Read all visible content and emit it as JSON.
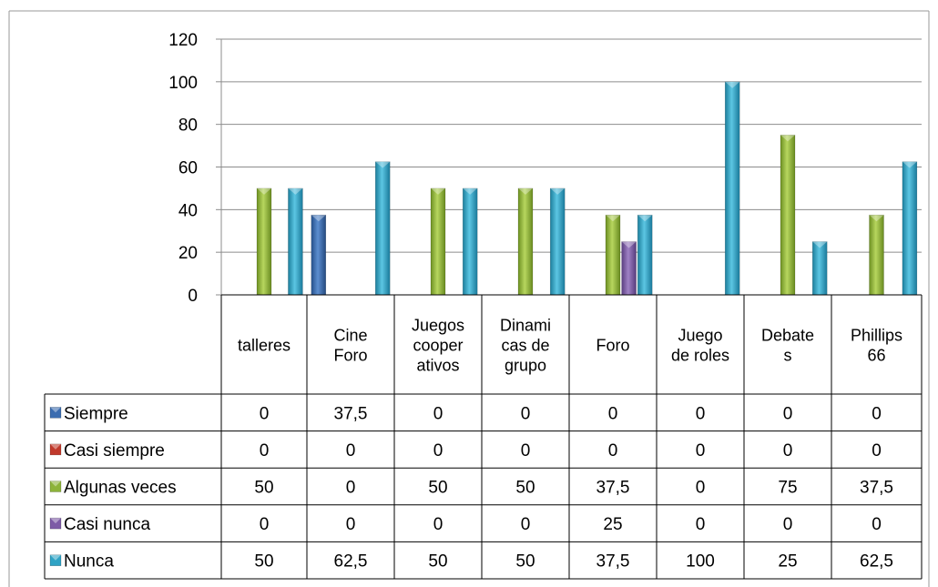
{
  "chart_data": {
    "type": "bar",
    "title": "",
    "xlabel": "",
    "ylabel": "",
    "ylim": [
      0,
      120
    ],
    "yticks": [
      "0",
      "20",
      "40",
      "60",
      "80",
      "100",
      "120"
    ],
    "grid": true,
    "legend": "data-table",
    "categories": [
      [
        "talleres"
      ],
      [
        "Cine",
        "Foro"
      ],
      [
        "Juegos",
        "cooper",
        "ativos"
      ],
      [
        "Dinami",
        "cas de",
        "grupo"
      ],
      [
        "Foro"
      ],
      [
        "Juego",
        "de roles"
      ],
      [
        "Debate",
        "s"
      ],
      [
        "Phillips",
        "66"
      ]
    ],
    "series": [
      {
        "name": "Siempre",
        "color": "#3C6DB0",
        "values": [
          0,
          37.5,
          0,
          0,
          0,
          0,
          0,
          0
        ],
        "labels": [
          "0",
          "37,5",
          "0",
          "0",
          "0",
          "0",
          "0",
          "0"
        ]
      },
      {
        "name": "Casi siempre",
        "color": "#C0392B",
        "values": [
          0,
          0,
          0,
          0,
          0,
          0,
          0,
          0
        ],
        "labels": [
          "0",
          "0",
          "0",
          "0",
          "0",
          "0",
          "0",
          "0"
        ]
      },
      {
        "name": "Algunas veces",
        "color": "#8DB33A",
        "values": [
          50,
          0,
          50,
          50,
          37.5,
          0,
          75,
          37.5
        ],
        "labels": [
          "50",
          "0",
          "50",
          "50",
          "37,5",
          "0",
          "75",
          "37,5"
        ]
      },
      {
        "name": "Casi nunca",
        "color": "#7D5BA6",
        "values": [
          0,
          0,
          0,
          0,
          25,
          0,
          0,
          0
        ],
        "labels": [
          "0",
          "0",
          "0",
          "0",
          "25",
          "0",
          "0",
          "0"
        ]
      },
      {
        "name": "Nunca",
        "color": "#2FA3C5",
        "values": [
          50,
          62.5,
          50,
          50,
          37.5,
          100,
          25,
          62.5
        ],
        "labels": [
          "50",
          "62,5",
          "50",
          "50",
          "37,5",
          "100",
          "25",
          "62,5"
        ]
      }
    ]
  }
}
